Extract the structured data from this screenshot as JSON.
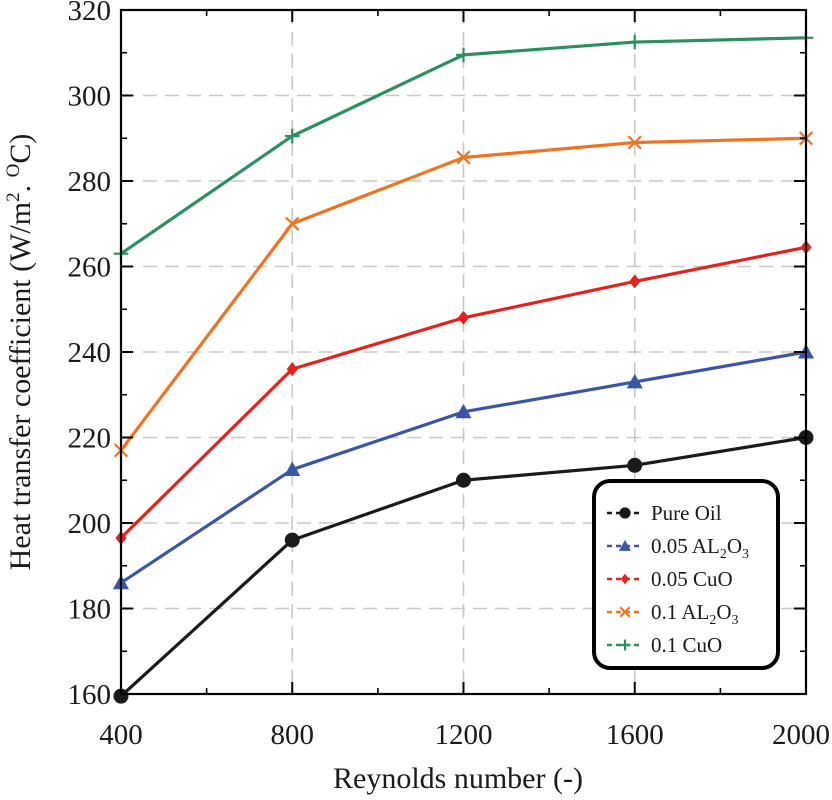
{
  "chart_data": {
    "type": "line",
    "title": "",
    "xlabel": "Reynolds number (-)",
    "ylabel": "Heat transfer coefficient  (W/m².°C)",
    "ylabel_parts": {
      "main": "Heat transfer coefficient  (W/m",
      "sup1": "2",
      "mid": ". ",
      "sup2": "O",
      "end": "C)"
    },
    "x": [
      400,
      800,
      1200,
      1600,
      2000
    ],
    "xlim": [
      400,
      2000
    ],
    "ylim": [
      160,
      320
    ],
    "xticks": [
      400,
      800,
      1200,
      1600,
      2000
    ],
    "yticks": [
      160,
      180,
      200,
      220,
      240,
      260,
      280,
      300,
      320
    ],
    "grid": true,
    "legend_position": "bottom-right",
    "series": [
      {
        "name": "Pure Oil",
        "label": {
          "base": "Pure Oil",
          "sub1": "",
          "mid": "",
          "sub2": ""
        },
        "color": "#1a1a1a",
        "marker": "circle",
        "values": [
          159.5,
          196,
          210,
          213.5,
          220
        ]
      },
      {
        "name": "0.05 AL2O3",
        "label": {
          "base": "0.05 AL",
          "sub1": "2",
          "mid": "O",
          "sub2": "3"
        },
        "color": "#3a55a4",
        "marker": "triangle",
        "values": [
          186,
          212.5,
          226,
          233,
          240
        ]
      },
      {
        "name": "0.05 CuO",
        "label": {
          "base": "0.05 CuO",
          "sub1": "",
          "mid": "",
          "sub2": ""
        },
        "color": "#e32219",
        "marker": "diamond",
        "values": [
          196.5,
          236,
          248,
          256.5,
          264.5
        ]
      },
      {
        "name": "0.1 AL2O3",
        "label": {
          "base": "0.1 AL",
          "sub1": "2",
          "mid": "O",
          "sub2": "3"
        },
        "color": "#ef7422",
        "marker": "x",
        "values": [
          217,
          270,
          285.5,
          289,
          290
        ]
      },
      {
        "name": "0.1 CuO",
        "label": {
          "base": "0.1 CuO",
          "sub1": "",
          "mid": "",
          "sub2": ""
        },
        "color": "#2b8f5f",
        "marker": "plus",
        "values": [
          263,
          290.5,
          309.5,
          312.5,
          313.5
        ]
      }
    ]
  }
}
